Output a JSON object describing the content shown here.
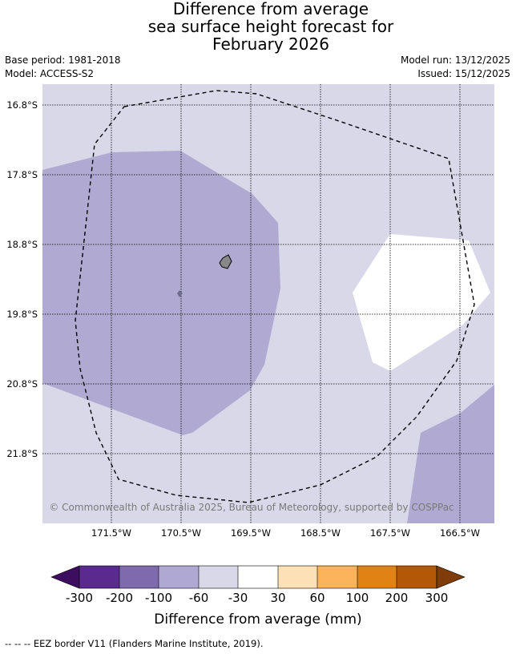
{
  "title": {
    "line1": "Difference from average",
    "line2": "sea surface height forecast for",
    "line3": "February 2026"
  },
  "meta": {
    "base_period": "Base period: 1981-2018",
    "model": "Model: ACCESS-S2",
    "model_run": "Model run: 13/12/2025",
    "issued": "Issued: 15/12/2025"
  },
  "map": {
    "lat_labels": [
      "16.8°S",
      "17.8°S",
      "18.8°S",
      "19.8°S",
      "20.8°S",
      "21.8°S"
    ],
    "lon_labels": [
      "171.5°W",
      "170.5°W",
      "169.5°W",
      "168.5°W",
      "167.5°W",
      "166.5°W"
    ],
    "copyright": "© Commonwealth of Australia 2025, Bureau of Meteorology, supported by COSPPac",
    "border_style": "dashed"
  },
  "colorbar": {
    "ticks": [
      "-300",
      "-200",
      "-100",
      "-60",
      "-30",
      "30",
      "60",
      "100",
      "200",
      "300"
    ],
    "colors": [
      "#3d0e60",
      "#5a2a8e",
      "#7d6bad",
      "#aea8d2",
      "#d8d8e9",
      "#ffffff",
      "#fde0b5",
      "#fbb45c",
      "#e08214",
      "#b35806",
      "#7f3b08"
    ],
    "label": "Difference from average (mm)"
  },
  "footer": "--  --  -- EEZ border V11 (Flanders Marine Institute, 2019)."
}
